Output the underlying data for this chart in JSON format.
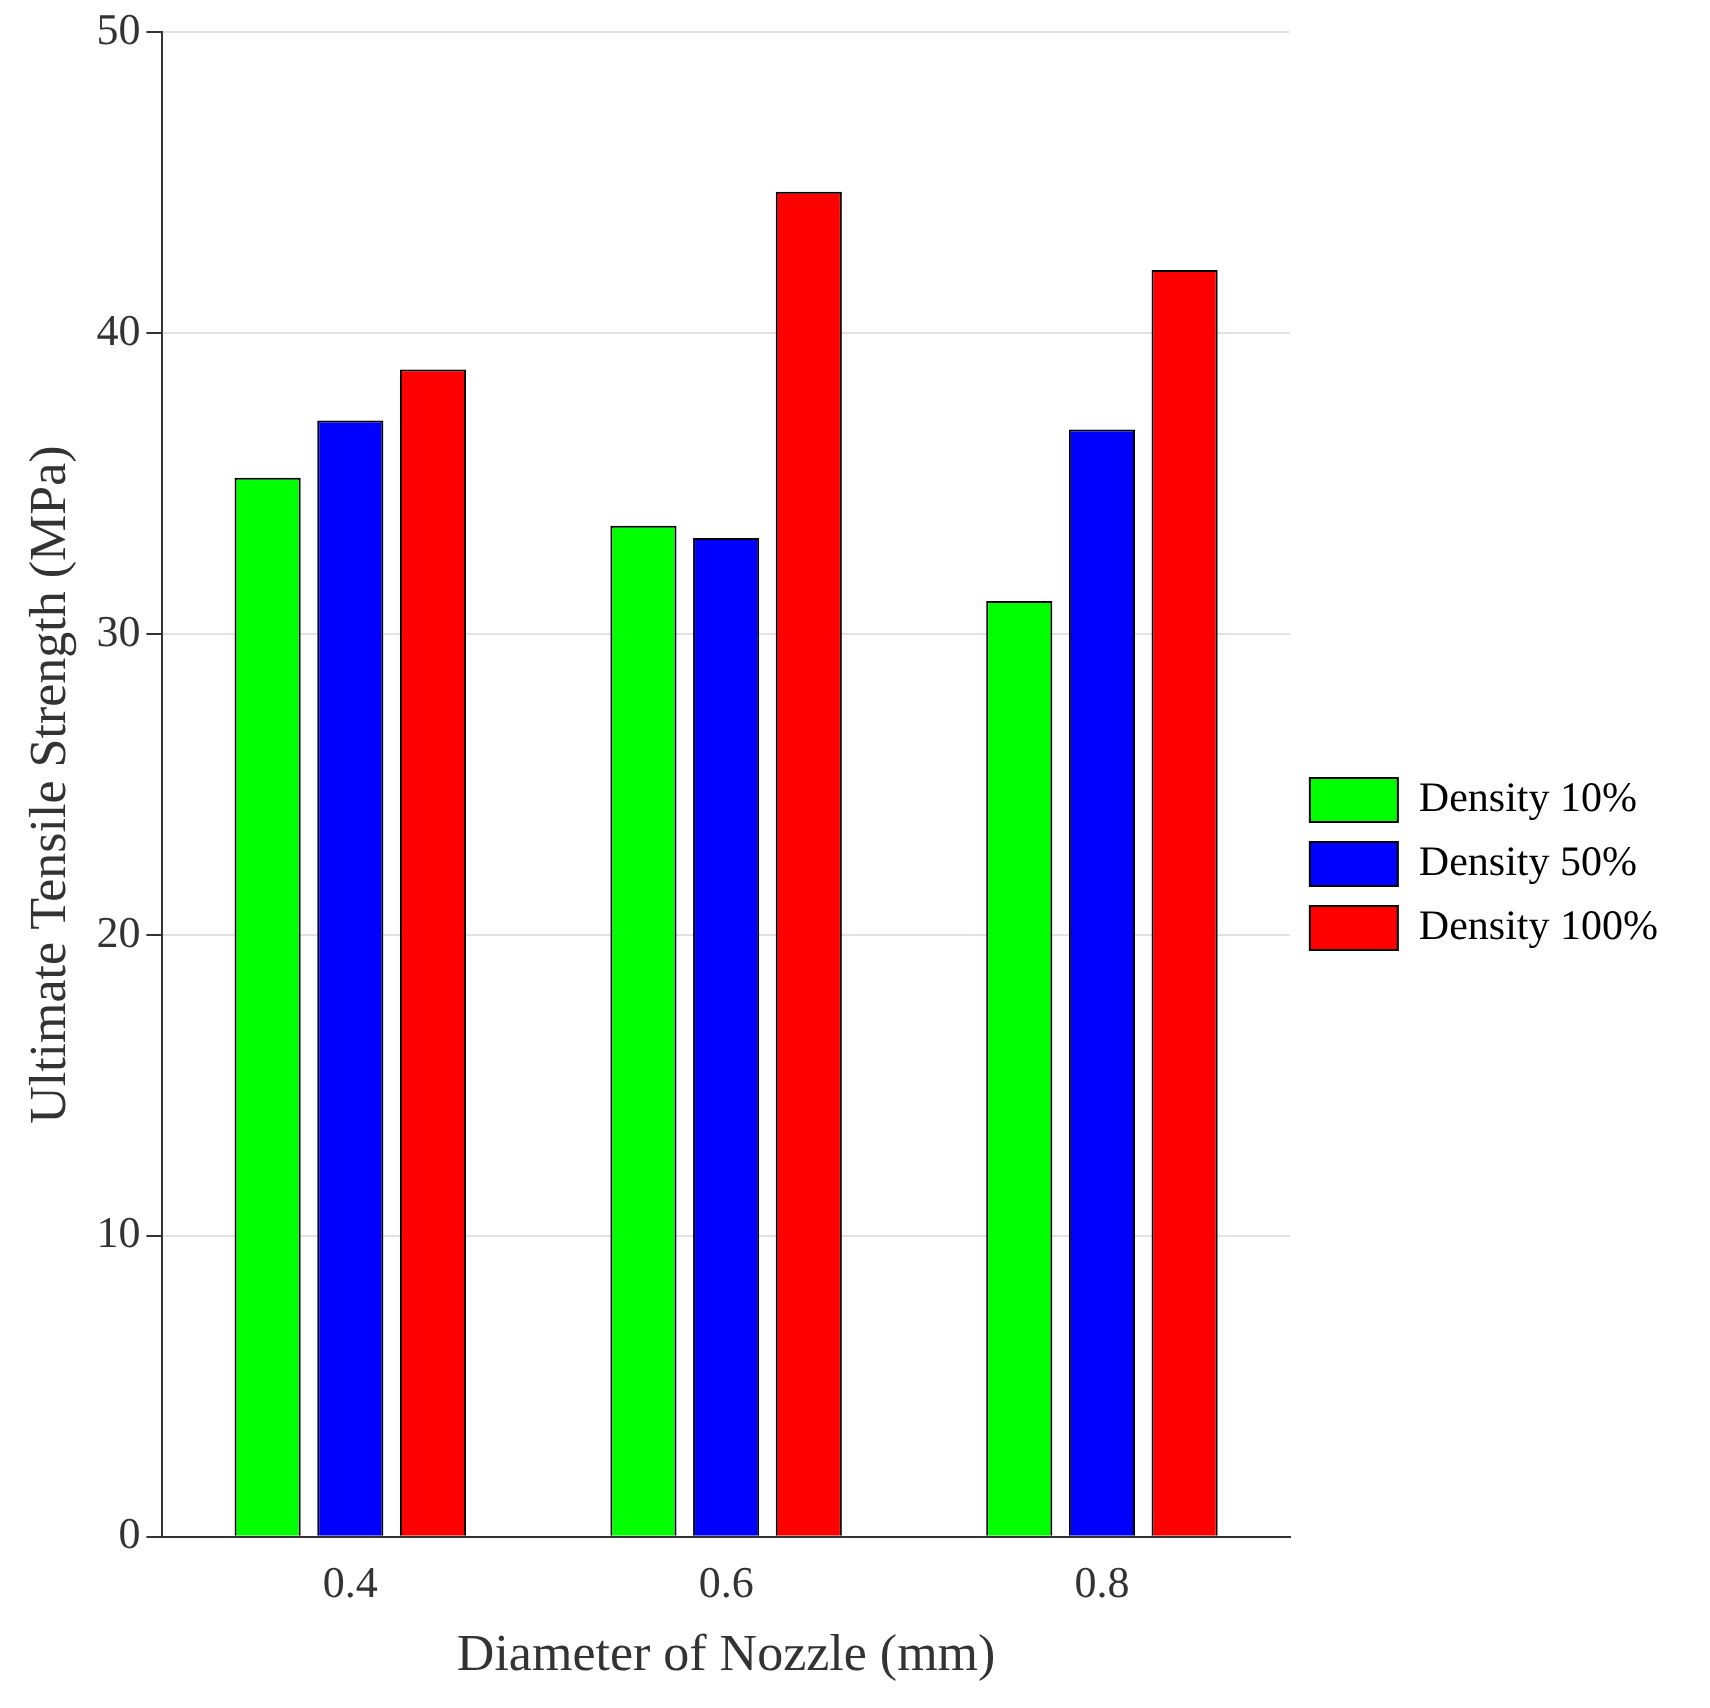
{
  "chart_data": {
    "type": "bar",
    "xlabel": "Diameter of Nozzle (mm)",
    "ylabel": "Ultimate Tensile Strength (MPa)",
    "categories": [
      "0.4",
      "0.6",
      "0.8"
    ],
    "series": [
      {
        "name": "Density 10%",
        "color": "#00ff00",
        "values": [
          35.2,
          33.6,
          31.1
        ]
      },
      {
        "name": "Density 50%",
        "color": "#0000ff",
        "values": [
          37.1,
          33.2,
          36.8
        ]
      },
      {
        "name": "Density 100%",
        "color": "#ff0000",
        "values": [
          38.8,
          44.7,
          42.1
        ]
      }
    ],
    "ylim": [
      0,
      50
    ],
    "yticks": [
      0,
      10,
      20,
      30,
      40,
      50
    ],
    "grid": "y",
    "legend": "right"
  }
}
